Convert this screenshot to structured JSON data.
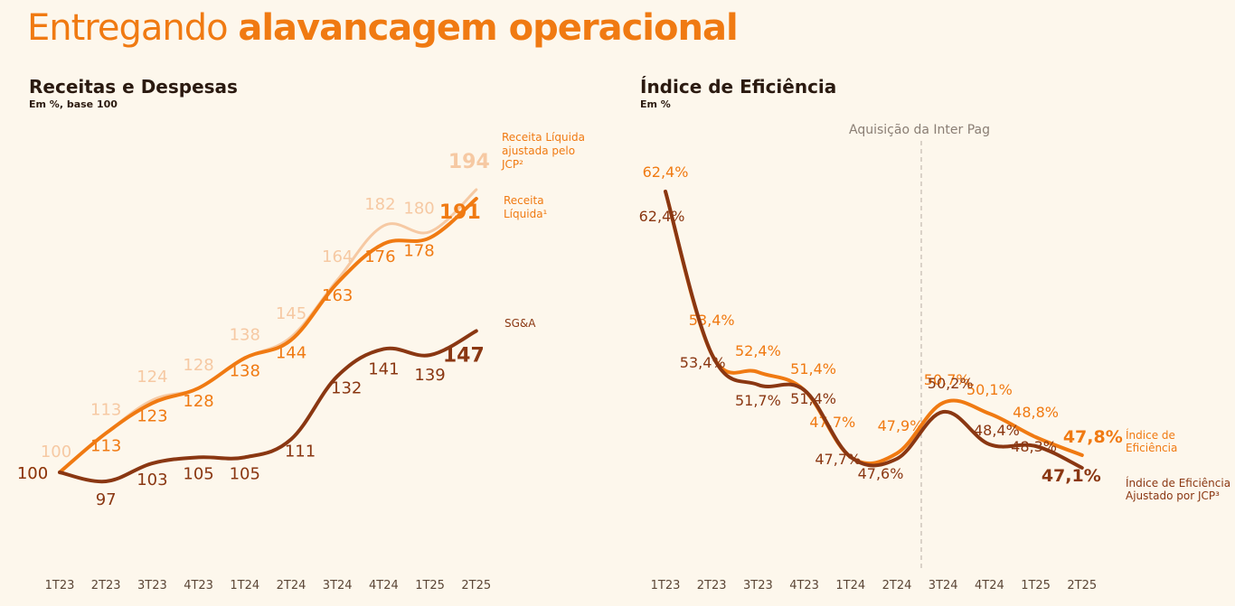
{
  "page": {
    "title_normal": "Entregando ",
    "title_bold": "alavancagem operacional"
  },
  "colors": {
    "background": "#fdf7ec",
    "orange": "#f07a12",
    "light": "#f6c9a3",
    "brown": "#8a3712",
    "title": "#f07a12"
  },
  "chart_data": [
    {
      "type": "line",
      "title": "Receitas e Despesas",
      "subtitle": "Em %, base 100",
      "categories": [
        "1T23",
        "2T23",
        "3T23",
        "4T23",
        "1T24",
        "2T24",
        "3T24",
        "4T24",
        "1T25",
        "2T25"
      ],
      "series": [
        {
          "name": "Receita Líquida ajustada pelo JCP²",
          "color": "#f6c9a3",
          "values": [
            100,
            113,
            124,
            128,
            138,
            145,
            164,
            182,
            180,
            194
          ],
          "labels": [
            "100",
            "113",
            "124",
            "128",
            "138",
            "145",
            "164",
            "182",
            "180",
            "194"
          ]
        },
        {
          "name": "Receita Líquida¹",
          "color": "#f07a12",
          "values": [
            100,
            113,
            123,
            128,
            138,
            144,
            163,
            176,
            178,
            191
          ],
          "labels": [
            "100",
            "113",
            "123",
            "128",
            "138",
            "144",
            "163",
            "176",
            "178",
            "191"
          ]
        },
        {
          "name": "SG&A",
          "color": "#8a3712",
          "values": [
            100,
            97,
            103,
            105,
            105,
            111,
            132,
            141,
            139,
            147
          ],
          "labels": [
            "100",
            "97",
            "103",
            "105",
            "105",
            "111",
            "132",
            "141",
            "139",
            "147"
          ]
        }
      ],
      "legend": [
        "Receita Líquida ajustada pelo",
        "JCP²",
        "Receita",
        "Líquida¹",
        "SG&A"
      ]
    },
    {
      "type": "line",
      "title": "Índice de Eficiência",
      "subtitle": "Em %",
      "annotation": "Aquisição da Inter Pag",
      "categories": [
        "1T23",
        "2T23",
        "3T23",
        "4T23",
        "1T24",
        "2T24",
        "3T24",
        "4T24",
        "1T25",
        "2T25"
      ],
      "series": [
        {
          "name": "Índice de Eficiência",
          "color": "#f07a12",
          "values": [
            62.4,
            53.4,
            52.4,
            51.4,
            47.7,
            47.9,
            50.7,
            50.1,
            48.8,
            47.8
          ],
          "labels": [
            "62,4%",
            "53,4%",
            "52,4%",
            "51,4%",
            "47,7%",
            "47,9%",
            "50,7%",
            "50,1%",
            "48,8%",
            "47,8%"
          ]
        },
        {
          "name": "Índice de Eficiência Ajustado por JCP³",
          "color": "#8a3712",
          "values": [
            62.4,
            53.4,
            51.7,
            51.4,
            47.7,
            47.6,
            50.2,
            48.4,
            48.3,
            47.1
          ],
          "labels": [
            "62,4%",
            "53,4%",
            "51,7%",
            "51,4%",
            "47,7%",
            "47,6%",
            "50,2%",
            "48,4%",
            "48,3%",
            "47,1%"
          ]
        }
      ],
      "legend": [
        "Índice de",
        "Eficiência",
        "Índice de Eficiência",
        "Ajustado por JCP³"
      ]
    }
  ]
}
